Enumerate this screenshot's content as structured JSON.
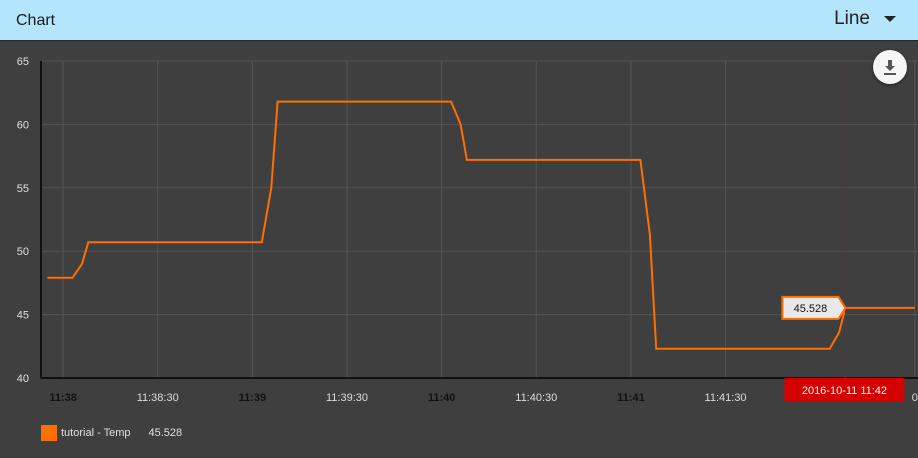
{
  "header": {
    "title": "Chart",
    "chart_type_selected": "Line"
  },
  "toolbar": {
    "download_icon": "download-icon"
  },
  "colors": {
    "series": "#ff6f00",
    "crosshair": "#d50000",
    "background": "#3f3f3f",
    "header": "#b3e5fc"
  },
  "chart_data": {
    "type": "line",
    "title": "",
    "xlabel": "",
    "ylabel": "",
    "ylim": [
      40,
      65
    ],
    "y_ticks": [
      40,
      45,
      50,
      55,
      60,
      65
    ],
    "xlim": [
      "11:37:53",
      "11:42:31"
    ],
    "x_ticks": [
      {
        "t": "11:38:00",
        "label": "11:38",
        "major": true
      },
      {
        "t": "11:38:30",
        "label": "11:38:30",
        "major": false
      },
      {
        "t": "11:39:00",
        "label": "11:39",
        "major": true
      },
      {
        "t": "11:39:30",
        "label": "11:39:30",
        "major": false
      },
      {
        "t": "11:40:00",
        "label": "11:40",
        "major": true
      },
      {
        "t": "11:40:30",
        "label": "11:40:30",
        "major": false
      },
      {
        "t": "11:41:00",
        "label": "11:41",
        "major": true
      },
      {
        "t": "11:41:30",
        "label": "11:41:30",
        "major": false
      },
      {
        "t": "11:42:30",
        "label": "0",
        "major": false
      }
    ],
    "grid": true,
    "legend_position": "bottom-left",
    "series": [
      {
        "name": "tutorial - Temp",
        "last_value": "45.528",
        "points": [
          {
            "t": "11:37:55",
            "y": 47.9
          },
          {
            "t": "11:38:03",
            "y": 47.9
          },
          {
            "t": "11:38:06",
            "y": 49.0
          },
          {
            "t": "11:38:08",
            "y": 50.7
          },
          {
            "t": "11:39:03",
            "y": 50.7
          },
          {
            "t": "11:39:06",
            "y": 55.0
          },
          {
            "t": "11:39:08",
            "y": 61.8
          },
          {
            "t": "11:40:03",
            "y": 61.8
          },
          {
            "t": "11:40:06",
            "y": 60.0
          },
          {
            "t": "11:40:08",
            "y": 57.2
          },
          {
            "t": "11:41:03",
            "y": 57.2
          },
          {
            "t": "11:41:06",
            "y": 51.3
          },
          {
            "t": "11:41:08",
            "y": 42.3
          },
          {
            "t": "11:42:03",
            "y": 42.3
          },
          {
            "t": "11:42:06",
            "y": 43.6
          },
          {
            "t": "11:42:08",
            "y": 45.528
          },
          {
            "t": "11:42:30",
            "y": 45.528
          }
        ]
      }
    ],
    "hover": {
      "t": "11:42:08",
      "value_label": "45.528",
      "time_label": "2016-10-11 11:42"
    }
  }
}
